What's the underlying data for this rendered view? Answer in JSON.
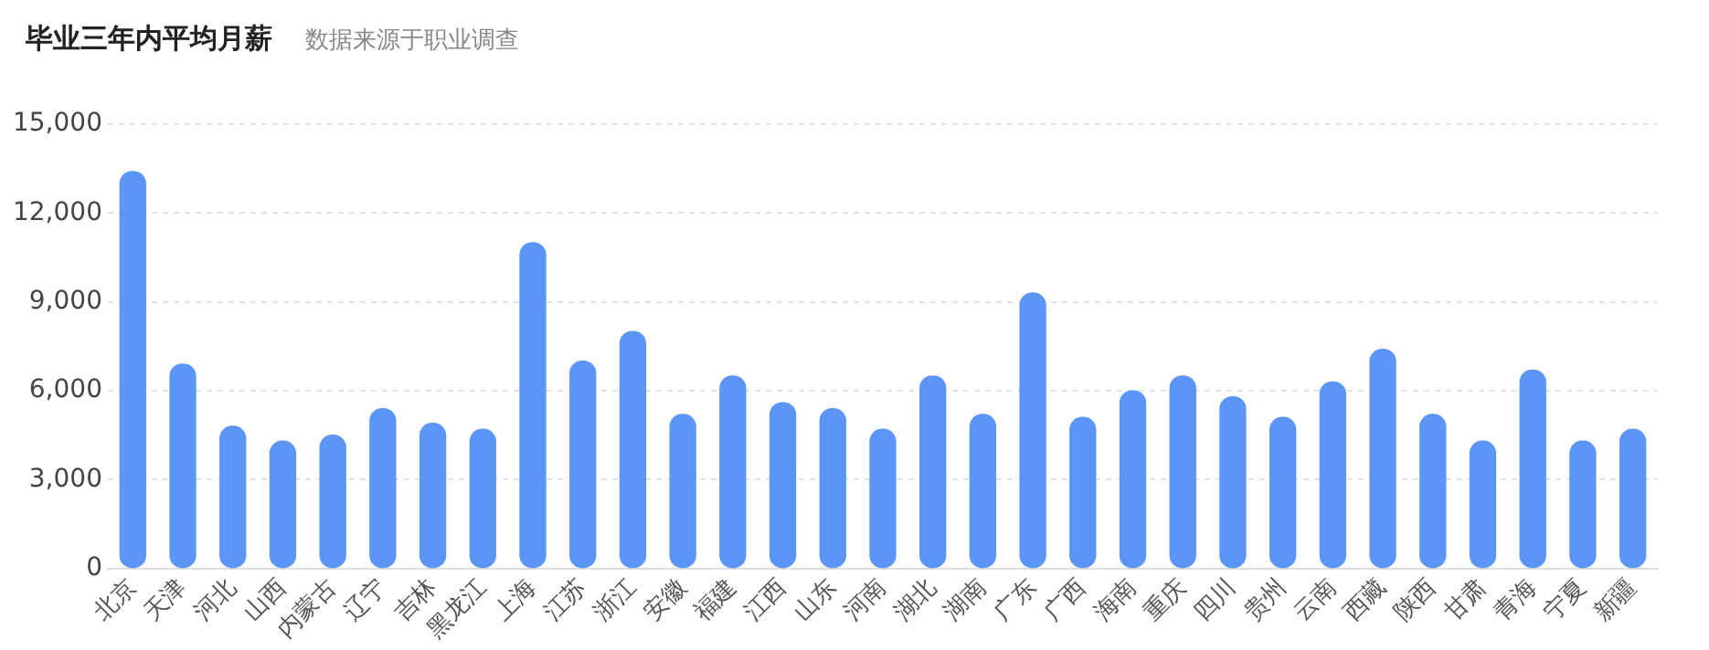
{
  "chart_data": {
    "type": "bar",
    "title": "毕业三年内平均月薪",
    "subtitle": "数据来源于职业调查",
    "categories": [
      "北京",
      "天津",
      "河北",
      "山西",
      "内蒙古",
      "辽宁",
      "吉林",
      "黑龙江",
      "上海",
      "江苏",
      "浙江",
      "安徽",
      "福建",
      "江西",
      "山东",
      "河南",
      "湖北",
      "湖南",
      "广东",
      "广西",
      "海南",
      "重庆",
      "四川",
      "贵州",
      "云南",
      "西藏",
      "陕西",
      "甘肃",
      "青海",
      "宁夏",
      "新疆"
    ],
    "values": [
      13400,
      6900,
      4800,
      4300,
      4500,
      5400,
      4900,
      4700,
      11000,
      7000,
      8000,
      5200,
      6500,
      5600,
      5400,
      4700,
      6500,
      5200,
      9300,
      5100,
      6000,
      6500,
      5800,
      5100,
      6300,
      7400,
      5200,
      4300,
      6700,
      4300,
      4700
    ],
    "color": "#5b96f7",
    "ylim": [
      0,
      15000
    ],
    "yticks": [
      0,
      {
        "value": 3000,
        "label": "3,000"
      },
      {
        "value": 6000,
        "label": "6,000"
      },
      {
        "value": 9000,
        "label": "9,000"
      },
      {
        "value": 12000,
        "label": "12,000"
      },
      {
        "value": 15000,
        "label": "15,000"
      }
    ],
    "grid": "y"
  }
}
